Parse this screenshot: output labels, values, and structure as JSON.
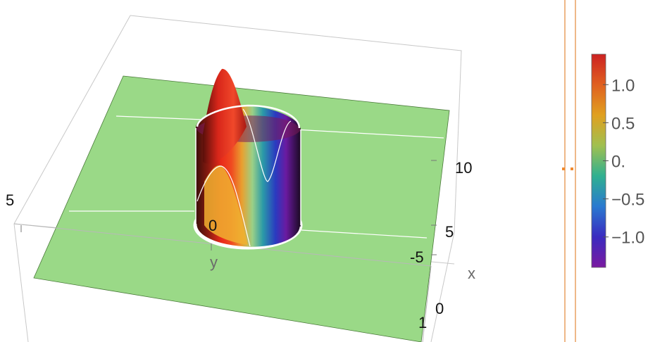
{
  "chart_data": {
    "type": "surface3d",
    "description_of_surface": "flat plane at z=0 with a tall cylindrical bump near the origin",
    "axes": {
      "x": {
        "label": "x",
        "ticks": [
          "-5",
          "0"
        ]
      },
      "y": {
        "label": "y",
        "ticks": [
          "5",
          "0"
        ]
      },
      "z": {
        "ticks": [
          "5",
          "10"
        ]
      }
    },
    "edge_labels": {
      "near_corner": "1"
    },
    "colorbar": {
      "ticks": [
        "1.0",
        "0.5",
        "0.",
        "−0.5",
        "−1.0"
      ],
      "tick_values": [
        1.0,
        0.5,
        0.0,
        -0.5,
        -1.0
      ],
      "range": [
        -1.4,
        1.4
      ],
      "colors": [
        "#cc2222",
        "#e06020",
        "#e0a020",
        "#a0c050",
        "#30b090",
        "#2a7ad0",
        "#3a2ac0",
        "#7a1aa0"
      ]
    },
    "plane_color": "#9ad987",
    "grid_lines": true
  }
}
